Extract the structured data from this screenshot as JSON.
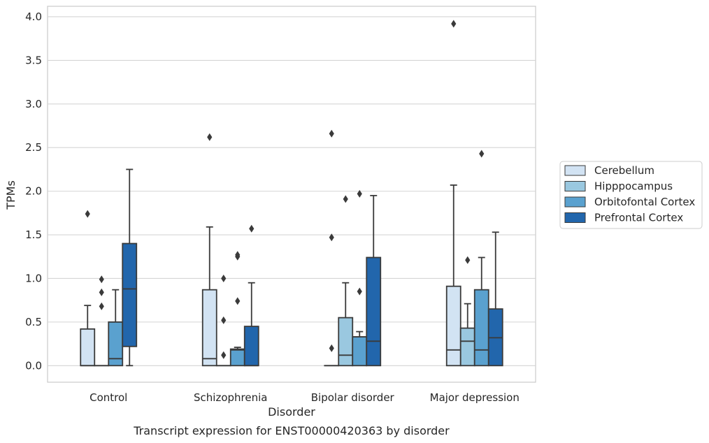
{
  "chart_data": {
    "type": "box",
    "title": "",
    "caption": "Transcript expression for ENST00000420363 by disorder",
    "xlabel": "Disorder",
    "ylabel": "TPMs",
    "ylim": [
      -0.19,
      4.12
    ],
    "yticks": [
      "0.0",
      "0.5",
      "1.0",
      "1.5",
      "2.0",
      "2.5",
      "3.0",
      "3.5",
      "4.0"
    ],
    "grid": true,
    "legend_position": "right",
    "categories": [
      "Control",
      "Schizophrenia",
      "Bipolar disorder",
      "Major depression"
    ],
    "series": [
      {
        "name": "Cerebellum",
        "color": "#d2e3f3",
        "boxes": [
          {
            "q1": 0.0,
            "median": 0.0,
            "q3": 0.42,
            "whisker_low": 0.0,
            "whisker_high": 0.69,
            "outliers": [
              1.74
            ]
          },
          {
            "q1": 0.0,
            "median": 0.08,
            "q3": 0.87,
            "whisker_low": 0.0,
            "whisker_high": 1.59,
            "outliers": [
              2.62
            ]
          },
          {
            "q1": 0.0,
            "median": 0.0,
            "q3": 0.0,
            "whisker_low": 0.0,
            "whisker_high": 0.0,
            "outliers": [
              0.2,
              1.47,
              2.66
            ]
          },
          {
            "q1": 0.0,
            "median": 0.18,
            "q3": 0.91,
            "whisker_low": 0.0,
            "whisker_high": 2.07,
            "outliers": [
              3.92
            ]
          }
        ]
      },
      {
        "name": "Hipppocampus",
        "color": "#9ac8e0",
        "boxes": [
          {
            "q1": 0.0,
            "median": 0.0,
            "q3": 0.0,
            "whisker_low": 0.0,
            "whisker_high": 0.0,
            "outliers": [
              0.68,
              0.84,
              0.99
            ]
          },
          {
            "q1": 0.0,
            "median": 0.0,
            "q3": 0.0,
            "whisker_low": 0.0,
            "whisker_high": 0.0,
            "outliers": [
              0.12,
              0.52,
              1.0
            ]
          },
          {
            "q1": 0.0,
            "median": 0.12,
            "q3": 0.55,
            "whisker_low": 0.0,
            "whisker_high": 0.95,
            "outliers": [
              1.91
            ]
          },
          {
            "q1": 0.0,
            "median": 0.28,
            "q3": 0.43,
            "whisker_low": 0.0,
            "whisker_high": 0.71,
            "outliers": [
              1.21
            ]
          }
        ]
      },
      {
        "name": "Orbitofontal Cortex",
        "color": "#5aa1cf",
        "boxes": [
          {
            "q1": 0.0,
            "median": 0.08,
            "q3": 0.5,
            "whisker_low": 0.0,
            "whisker_high": 0.87,
            "outliers": []
          },
          {
            "q1": 0.0,
            "median": 0.18,
            "q3": 0.19,
            "whisker_low": 0.0,
            "whisker_high": 0.21,
            "outliers": [
              0.74,
              1.25,
              1.27
            ]
          },
          {
            "q1": 0.0,
            "median": 0.33,
            "q3": 0.33,
            "whisker_low": 0.0,
            "whisker_high": 0.39,
            "outliers": [
              0.85,
              1.97
            ]
          },
          {
            "q1": 0.0,
            "median": 0.18,
            "q3": 0.87,
            "whisker_low": 0.0,
            "whisker_high": 1.24,
            "outliers": [
              2.43
            ]
          }
        ]
      },
      {
        "name": "Prefrontal Cortex",
        "color": "#2266ac",
        "boxes": [
          {
            "q1": 0.22,
            "median": 0.88,
            "q3": 1.4,
            "whisker_low": 0.0,
            "whisker_high": 2.25,
            "outliers": []
          },
          {
            "q1": 0.0,
            "median": 0.0,
            "q3": 0.45,
            "whisker_low": 0.0,
            "whisker_high": 0.95,
            "outliers": [
              1.57
            ]
          },
          {
            "q1": 0.0,
            "median": 0.28,
            "q3": 1.24,
            "whisker_low": 0.0,
            "whisker_high": 1.95,
            "outliers": []
          },
          {
            "q1": 0.0,
            "median": 0.32,
            "q3": 0.65,
            "whisker_low": 0.0,
            "whisker_high": 1.53,
            "outliers": []
          }
        ]
      }
    ]
  }
}
